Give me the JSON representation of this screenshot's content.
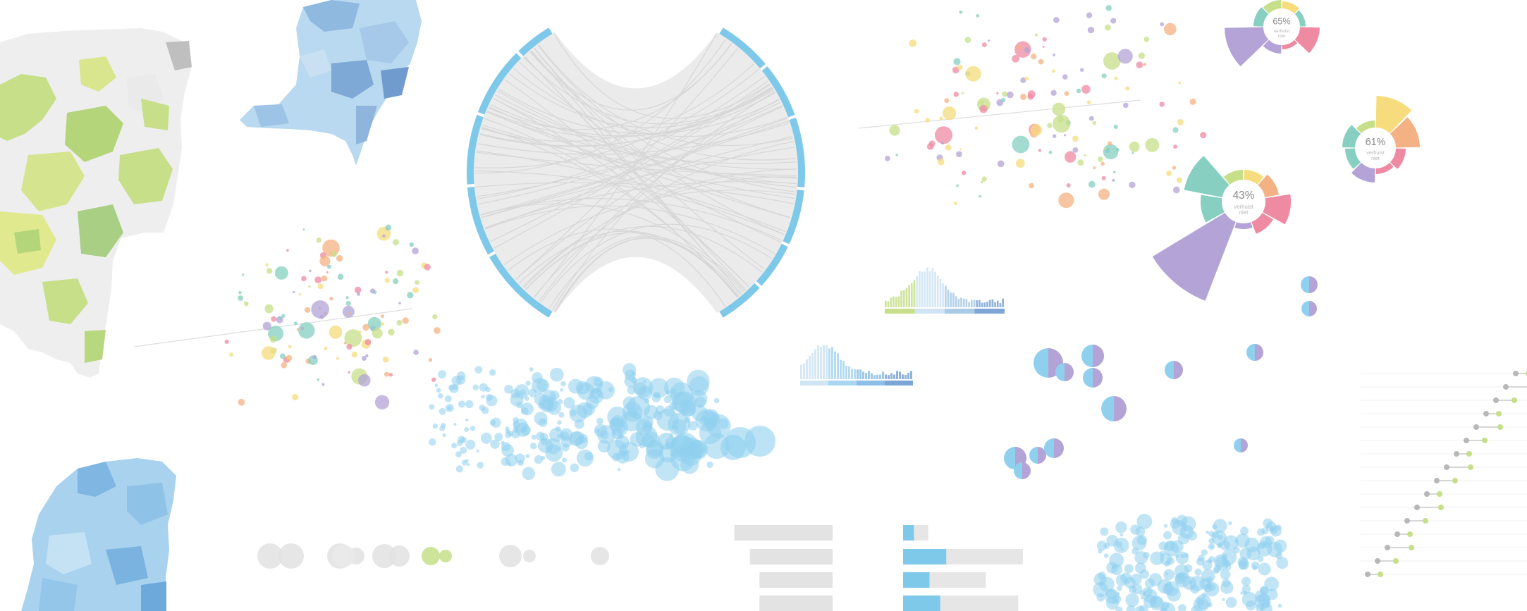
{
  "colors": {
    "blue": "#8fd0ee",
    "blue_dark": "#7ec8ea",
    "lavender": "#b3a3d6",
    "pink": "#ef8aa3",
    "yellow": "#f6dc7c",
    "orange": "#f4b183",
    "teal": "#86cfc1",
    "green": "#c6df88",
    "gray": "#e2e2e2"
  },
  "rose_charts": [
    {
      "percent": "65%",
      "line1": "verhuist",
      "line2": "niet"
    },
    {
      "percent": "61%",
      "line1": "verhuist",
      "line2": "niet"
    },
    {
      "percent": "43%",
      "line1": "verhuist",
      "line2": "niet"
    }
  ],
  "bars_left": [
    0.82,
    0.69,
    0.61,
    0.61
  ],
  "bars_right": [
    {
      "fill": 0.09,
      "total": 0.21
    },
    {
      "fill": 0.36,
      "total": 1.0
    },
    {
      "fill": 0.22,
      "total": 0.69
    },
    {
      "fill": 0.31,
      "total": 0.96
    }
  ]
}
